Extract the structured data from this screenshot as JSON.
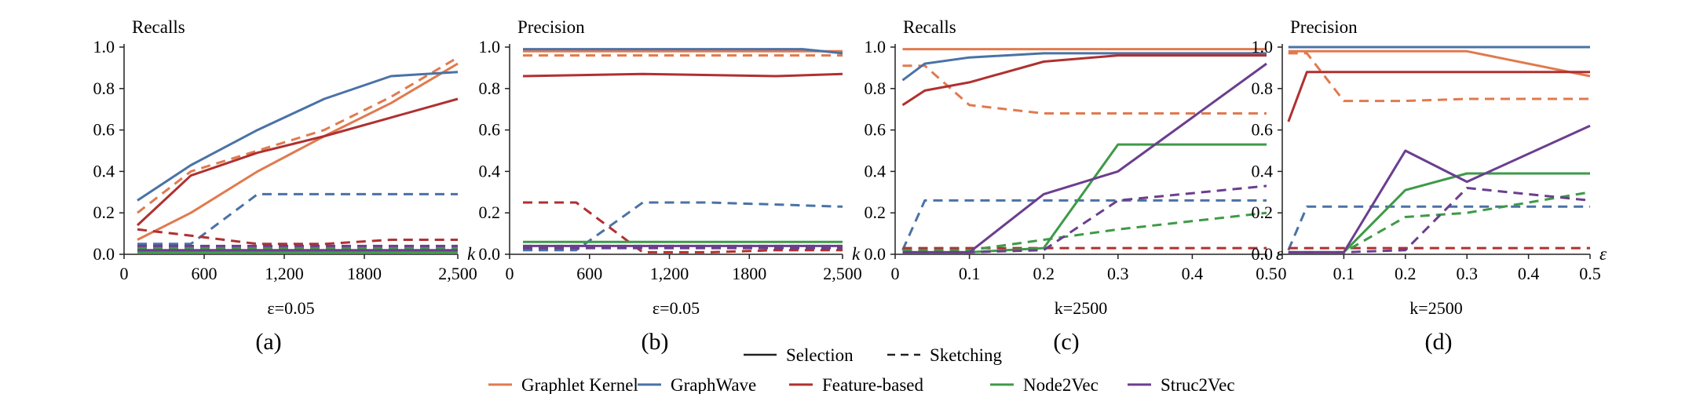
{
  "colors": {
    "Graphlet Kernel": "#E07A4E",
    "GraphWave": "#4A72A6",
    "Feature-based": "#B03030",
    "Node2Vec": "#3E9A48",
    "Struc2Vec": "#6B3E8E"
  },
  "legend": {
    "styles": [
      {
        "label": "Selection",
        "dash": "solid"
      },
      {
        "label": "Sketching",
        "dash": "dashed"
      }
    ],
    "methods": [
      "Graphlet Kernel",
      "GraphWave",
      "Feature-based",
      "Node2Vec",
      "Struc2Vec"
    ]
  },
  "chart_data": [
    {
      "panel": "(a)",
      "type": "line",
      "title": "Recalls",
      "caption": "ε=0.05",
      "x_axis_label": "k",
      "xlim": [
        0,
        2500
      ],
      "ylim": [
        0,
        1
      ],
      "x_ticks": [
        "0",
        "600",
        "1,200",
        "1800",
        "2,500"
      ],
      "x_tick_values": [
        0,
        600,
        1200,
        1800,
        2500
      ],
      "y_ticks": [
        "0.0",
        "0.2",
        "0.4",
        "0.6",
        "0.8",
        "1.0"
      ],
      "series": [
        {
          "name": "Graphlet Kernel",
          "style": "solid",
          "x": [
            100,
            500,
            1000,
            1500,
            2000,
            2500
          ],
          "y": [
            0.07,
            0.2,
            0.4,
            0.57,
            0.73,
            0.92
          ]
        },
        {
          "name": "Graphlet Kernel",
          "style": "dashed",
          "x": [
            100,
            500,
            1000,
            1500,
            2000,
            2500
          ],
          "y": [
            0.2,
            0.4,
            0.5,
            0.6,
            0.76,
            0.95
          ]
        },
        {
          "name": "GraphWave",
          "style": "solid",
          "x": [
            100,
            500,
            1000,
            1500,
            2000,
            2500
          ],
          "y": [
            0.26,
            0.43,
            0.6,
            0.75,
            0.86,
            0.88
          ]
        },
        {
          "name": "GraphWave",
          "style": "dashed",
          "x": [
            100,
            500,
            1000,
            2500
          ],
          "y": [
            0.05,
            0.05,
            0.29,
            0.29
          ]
        },
        {
          "name": "Feature-based",
          "style": "solid",
          "x": [
            100,
            500,
            1000,
            1500,
            2000,
            2500
          ],
          "y": [
            0.14,
            0.38,
            0.49,
            0.57,
            0.66,
            0.75
          ]
        },
        {
          "name": "Feature-based",
          "style": "dashed",
          "x": [
            100,
            500,
            1000,
            1500,
            2000,
            2500
          ],
          "y": [
            0.12,
            0.09,
            0.05,
            0.05,
            0.07,
            0.07
          ]
        },
        {
          "name": "Node2Vec",
          "style": "solid",
          "x": [
            100,
            2500
          ],
          "y": [
            0.01,
            0.01
          ]
        },
        {
          "name": "Node2Vec",
          "style": "dashed",
          "x": [
            100,
            2500
          ],
          "y": [
            0.03,
            0.03
          ]
        },
        {
          "name": "Struc2Vec",
          "style": "solid",
          "x": [
            100,
            2500
          ],
          "y": [
            0.02,
            0.02
          ]
        },
        {
          "name": "Struc2Vec",
          "style": "dashed",
          "x": [
            100,
            2500
          ],
          "y": [
            0.04,
            0.04
          ]
        }
      ]
    },
    {
      "panel": "(b)",
      "type": "line",
      "title": "Precision",
      "caption": "ε=0.05",
      "x_axis_label": "k",
      "xlim": [
        0,
        2500
      ],
      "ylim": [
        0,
        1
      ],
      "x_ticks": [
        "0",
        "600",
        "1,200",
        "1800",
        "2,500"
      ],
      "x_tick_values": [
        0,
        600,
        1200,
        1800,
        2500
      ],
      "y_ticks": [
        "0.0",
        "0.2",
        "0.4",
        "0.6",
        "0.8",
        "1.0"
      ],
      "series": [
        {
          "name": "Graphlet Kernel",
          "style": "solid",
          "x": [
            100,
            2500
          ],
          "y": [
            0.98,
            0.98
          ]
        },
        {
          "name": "Graphlet Kernel",
          "style": "dashed",
          "x": [
            100,
            2500
          ],
          "y": [
            0.96,
            0.96
          ]
        },
        {
          "name": "GraphWave",
          "style": "solid",
          "x": [
            100,
            2200,
            2500
          ],
          "y": [
            0.99,
            0.99,
            0.97
          ]
        },
        {
          "name": "GraphWave",
          "style": "dashed",
          "x": [
            100,
            500,
            1000,
            1500,
            2000,
            2500
          ],
          "y": [
            0.02,
            0.02,
            0.25,
            0.25,
            0.24,
            0.23
          ]
        },
        {
          "name": "Feature-based",
          "style": "solid",
          "x": [
            100,
            1000,
            2000,
            2500
          ],
          "y": [
            0.86,
            0.87,
            0.86,
            0.87
          ]
        },
        {
          "name": "Feature-based",
          "style": "dashed",
          "x": [
            100,
            500,
            1000,
            1500,
            2000,
            2500
          ],
          "y": [
            0.25,
            0.25,
            0.01,
            0.01,
            0.02,
            0.02
          ]
        },
        {
          "name": "Node2Vec",
          "style": "solid",
          "x": [
            100,
            2500
          ],
          "y": [
            0.06,
            0.06
          ]
        },
        {
          "name": "Node2Vec",
          "style": "dashed",
          "x": [
            100,
            2500
          ],
          "y": [
            0.04,
            0.04
          ]
        },
        {
          "name": "Struc2Vec",
          "style": "solid",
          "x": [
            100,
            2500
          ],
          "y": [
            0.04,
            0.04
          ]
        },
        {
          "name": "Struc2Vec",
          "style": "dashed",
          "x": [
            100,
            2500
          ],
          "y": [
            0.03,
            0.03
          ]
        }
      ]
    },
    {
      "panel": "(c)",
      "type": "line",
      "title": "Recalls",
      "caption": "k=2500",
      "x_axis_label": "ε",
      "xlim": [
        0,
        0.5
      ],
      "ylim": [
        0,
        1
      ],
      "x_ticks": [
        "0",
        "0.1",
        "0.2",
        "0.3",
        "0.4",
        "0.5"
      ],
      "x_tick_values": [
        0,
        0.1,
        0.2,
        0.3,
        0.4,
        0.5
      ],
      "y_ticks": [
        "0.0",
        "0.2",
        "0.4",
        "0.6",
        "0.8",
        "1.0"
      ],
      "series": [
        {
          "name": "Graphlet Kernel",
          "style": "solid",
          "x": [
            0.01,
            0.5
          ],
          "y": [
            0.99,
            0.99
          ]
        },
        {
          "name": "Graphlet Kernel",
          "style": "dashed",
          "x": [
            0.01,
            0.04,
            0.1,
            0.2,
            0.3,
            0.5
          ],
          "y": [
            0.91,
            0.91,
            0.72,
            0.68,
            0.68,
            0.68
          ]
        },
        {
          "name": "GraphWave",
          "style": "solid",
          "x": [
            0.01,
            0.04,
            0.1,
            0.2,
            0.3,
            0.5
          ],
          "y": [
            0.84,
            0.92,
            0.95,
            0.97,
            0.97,
            0.97
          ]
        },
        {
          "name": "GraphWave",
          "style": "dashed",
          "x": [
            0.01,
            0.04,
            0.1,
            0.2,
            0.3,
            0.5
          ],
          "y": [
            0.02,
            0.26,
            0.26,
            0.26,
            0.26,
            0.26
          ]
        },
        {
          "name": "Feature-based",
          "style": "solid",
          "x": [
            0.01,
            0.04,
            0.1,
            0.2,
            0.3,
            0.5
          ],
          "y": [
            0.72,
            0.79,
            0.83,
            0.93,
            0.96,
            0.96
          ]
        },
        {
          "name": "Feature-based",
          "style": "dashed",
          "x": [
            0.01,
            0.5
          ],
          "y": [
            0.03,
            0.03
          ]
        },
        {
          "name": "Node2Vec",
          "style": "solid",
          "x": [
            0.01,
            0.1,
            0.2,
            0.3,
            0.5
          ],
          "y": [
            0.01,
            0.01,
            0.03,
            0.53,
            0.53
          ]
        },
        {
          "name": "Node2Vec",
          "style": "dashed",
          "x": [
            0.01,
            0.1,
            0.2,
            0.3,
            0.5
          ],
          "y": [
            0.02,
            0.02,
            0.07,
            0.12,
            0.2
          ]
        },
        {
          "name": "Struc2Vec",
          "style": "solid",
          "x": [
            0.01,
            0.1,
            0.2,
            0.3,
            0.5
          ],
          "y": [
            0.01,
            0.01,
            0.29,
            0.4,
            0.92
          ]
        },
        {
          "name": "Struc2Vec",
          "style": "dashed",
          "x": [
            0.01,
            0.1,
            0.2,
            0.3,
            0.5
          ],
          "y": [
            0.01,
            0.01,
            0.02,
            0.26,
            0.33
          ]
        }
      ]
    },
    {
      "panel": "(d)",
      "type": "line",
      "title": "Precision",
      "caption": "k=2500",
      "x_axis_label": "ε",
      "xlim": [
        0,
        0.5
      ],
      "ylim": [
        0,
        1
      ],
      "x_ticks": [
        "0",
        "0.1",
        "0.2",
        "0.3",
        "0.4",
        "0.5"
      ],
      "x_tick_values": [
        0,
        0.1,
        0.2,
        0.3,
        0.4,
        0.5
      ],
      "y_ticks": [
        "0.0",
        "0.2",
        "0.4",
        "0.6",
        "0.8",
        "1.0"
      ],
      "series": [
        {
          "name": "Graphlet Kernel",
          "style": "solid",
          "x": [
            0.01,
            0.3,
            0.5
          ],
          "y": [
            0.98,
            0.98,
            0.86
          ]
        },
        {
          "name": "Graphlet Kernel",
          "style": "dashed",
          "x": [
            0.01,
            0.04,
            0.1,
            0.2,
            0.3,
            0.5
          ],
          "y": [
            0.97,
            0.97,
            0.74,
            0.74,
            0.75,
            0.75
          ]
        },
        {
          "name": "GraphWave",
          "style": "solid",
          "x": [
            0.01,
            0.5
          ],
          "y": [
            1.0,
            1.0
          ]
        },
        {
          "name": "GraphWave",
          "style": "dashed",
          "x": [
            0.01,
            0.04,
            0.1,
            0.2,
            0.3,
            0.5
          ],
          "y": [
            0.02,
            0.23,
            0.23,
            0.23,
            0.23,
            0.23
          ]
        },
        {
          "name": "Feature-based",
          "style": "solid",
          "x": [
            0.01,
            0.04,
            0.1,
            0.2,
            0.3,
            0.5
          ],
          "y": [
            0.64,
            0.88,
            0.88,
            0.88,
            0.88,
            0.88
          ]
        },
        {
          "name": "Feature-based",
          "style": "dashed",
          "x": [
            0.01,
            0.5
          ],
          "y": [
            0.03,
            0.03
          ]
        },
        {
          "name": "Node2Vec",
          "style": "solid",
          "x": [
            0.01,
            0.1,
            0.2,
            0.3,
            0.5
          ],
          "y": [
            0.01,
            0.01,
            0.31,
            0.39,
            0.39
          ]
        },
        {
          "name": "Node2Vec",
          "style": "dashed",
          "x": [
            0.01,
            0.1,
            0.2,
            0.3,
            0.5
          ],
          "y": [
            0.01,
            0.01,
            0.18,
            0.2,
            0.3
          ]
        },
        {
          "name": "Struc2Vec",
          "style": "solid",
          "x": [
            0.01,
            0.1,
            0.2,
            0.3,
            0.5
          ],
          "y": [
            0.01,
            0.01,
            0.5,
            0.35,
            0.62
          ]
        },
        {
          "name": "Struc2Vec",
          "style": "dashed",
          "x": [
            0.01,
            0.1,
            0.2,
            0.3,
            0.5
          ],
          "y": [
            0.01,
            0.01,
            0.02,
            0.32,
            0.26
          ]
        }
      ]
    }
  ]
}
